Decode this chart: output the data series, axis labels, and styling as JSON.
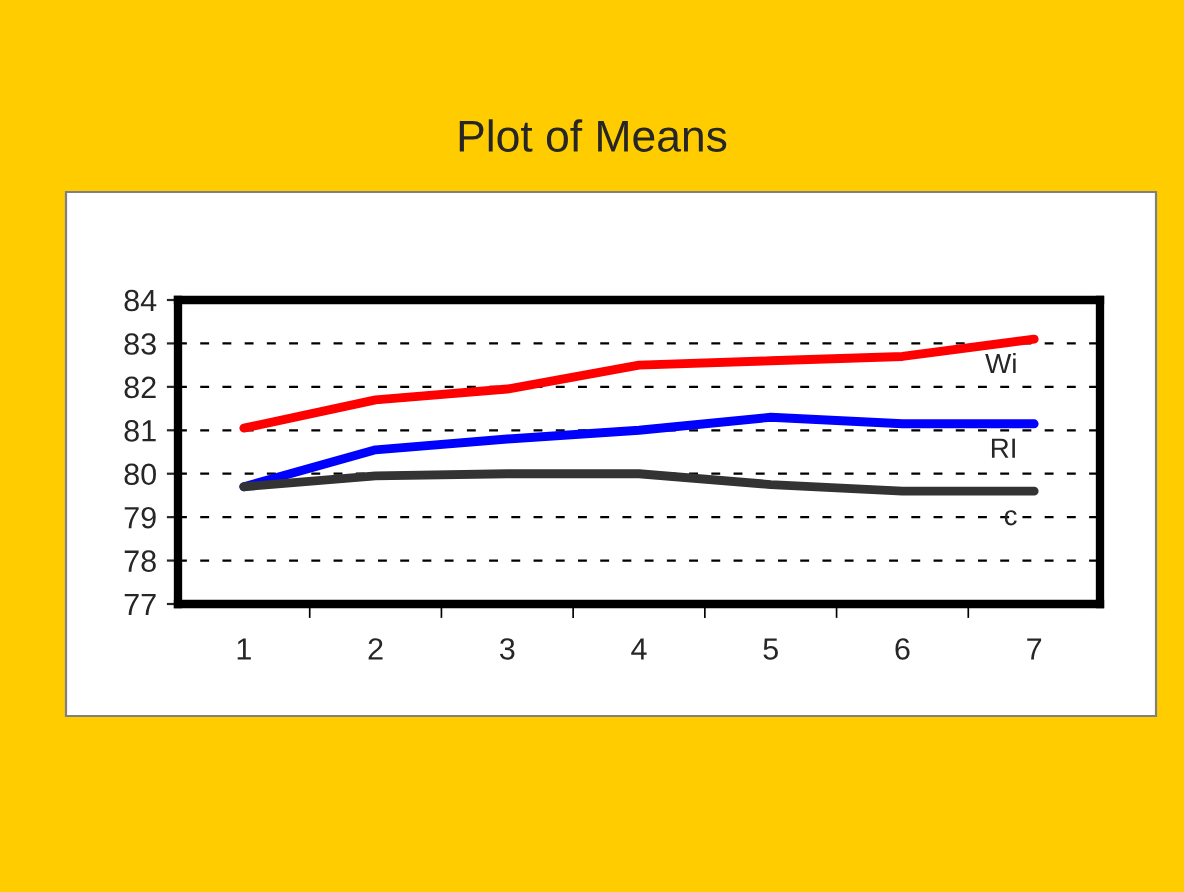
{
  "chart_data": {
    "type": "line",
    "title": "Plot of Means",
    "categories": [
      "1",
      "2",
      "3",
      "4",
      "5",
      "6",
      "7"
    ],
    "series": [
      {
        "name": "Wi",
        "color": "#ff0000",
        "values": [
          81.05,
          81.7,
          81.95,
          82.5,
          82.6,
          82.7,
          83.1
        ]
      },
      {
        "name": "RI",
        "color": "#0000ff",
        "values": [
          79.7,
          80.55,
          80.8,
          81.0,
          81.3,
          81.15,
          81.15
        ]
      },
      {
        "name": "c",
        "color": "#333333",
        "values": [
          79.7,
          79.95,
          80.0,
          80.0,
          79.75,
          79.6,
          79.6
        ]
      }
    ],
    "ylim": [
      77,
      84
    ],
    "yticks": [
      77,
      78,
      79,
      80,
      81,
      82,
      83,
      84
    ],
    "grid": "y",
    "legend": false,
    "marker": "none",
    "line_style": "solid"
  }
}
